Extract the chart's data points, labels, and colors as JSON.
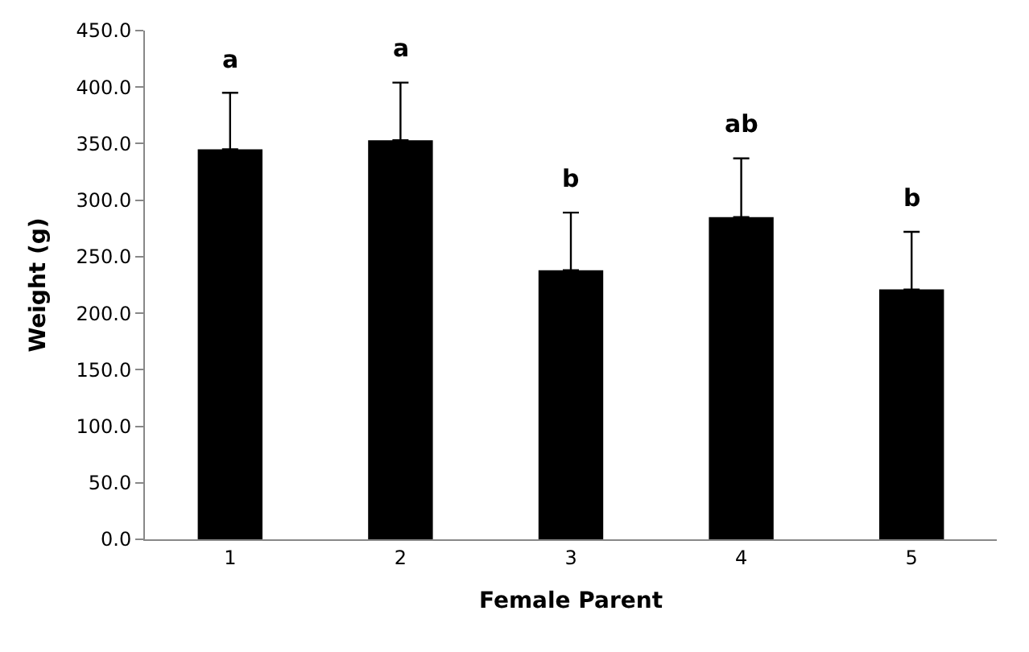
{
  "chart_data": {
    "type": "bar",
    "xlabel": "Female Parent",
    "ylabel": "Weight (g)",
    "categories": [
      "1",
      "2",
      "3",
      "4",
      "5"
    ],
    "series": [
      {
        "color": "#000000",
        "values": [
          345,
          353,
          238,
          285,
          221
        ],
        "errors": [
          [
            345,
            395
          ],
          [
            353,
            404
          ],
          [
            238,
            289
          ],
          [
            285,
            337
          ],
          [
            221,
            272
          ]
        ]
      }
    ],
    "ylim": [
      0,
      450
    ],
    "yticks": [
      {
        "value": 0,
        "label": "0.0"
      },
      {
        "value": 50,
        "label": "50.0"
      },
      {
        "value": 100,
        "label": "100.0"
      },
      {
        "value": 150,
        "label": "150.0"
      },
      {
        "value": 200,
        "label": "200.0"
      },
      {
        "value": 250,
        "label": "250.0"
      },
      {
        "value": 300,
        "label": "300.0"
      },
      {
        "value": 350,
        "label": "350.0"
      },
      {
        "value": 400,
        "label": "400.0"
      },
      {
        "value": 450,
        "label": "450.0"
      }
    ],
    "annotations": [
      {
        "text": "a",
        "x": "1",
        "y": 395
      },
      {
        "text": "a",
        "x": "2",
        "y": 404
      },
      {
        "text": "b",
        "x": "3",
        "y": 289
      },
      {
        "text": "ab",
        "x": "4",
        "y": 337
      },
      {
        "text": "b",
        "x": "5",
        "y": 272
      }
    ],
    "legend": false
  }
}
